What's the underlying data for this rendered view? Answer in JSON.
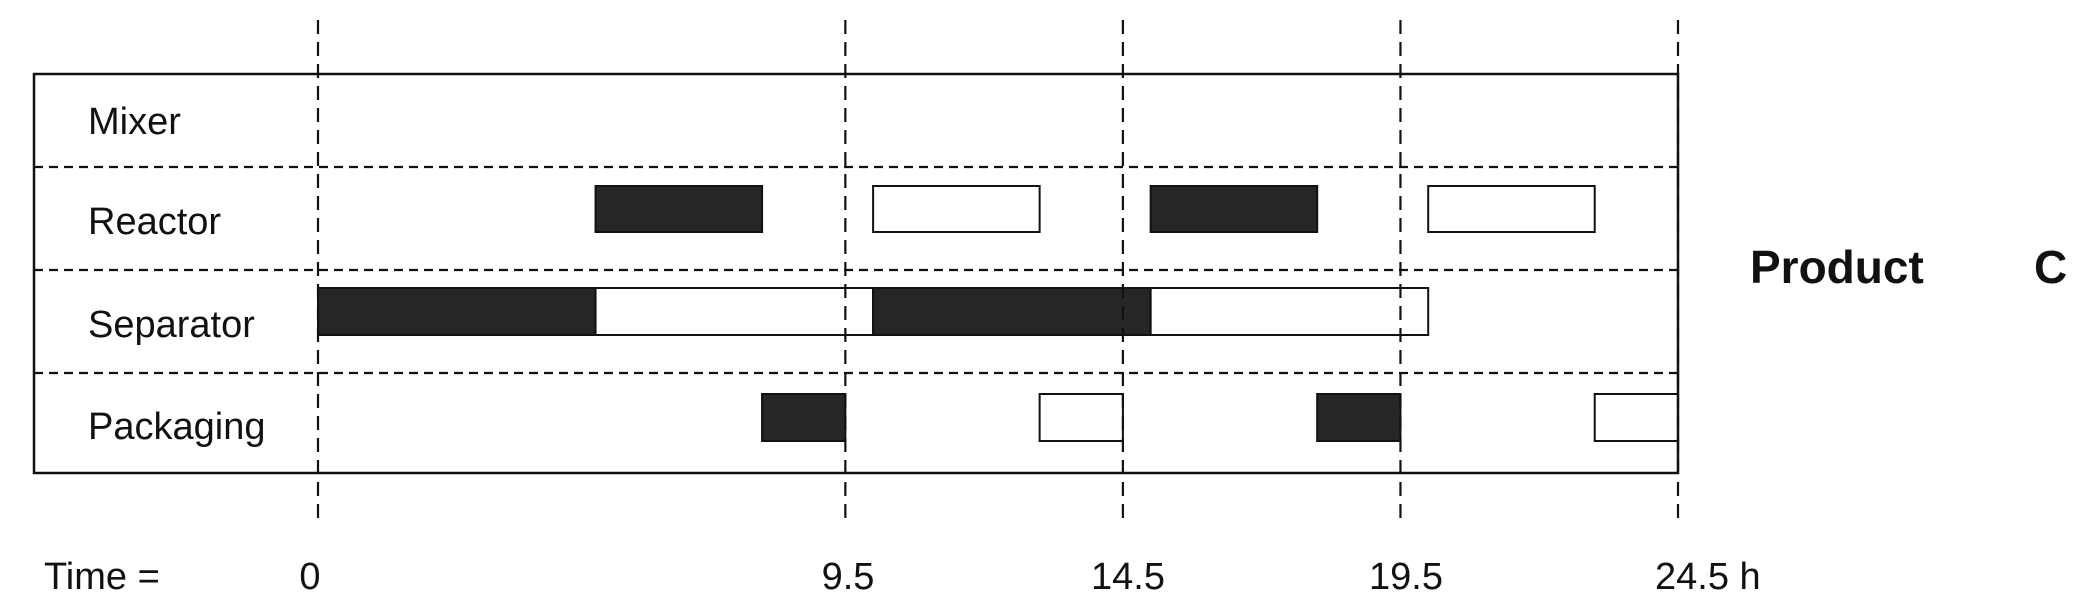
{
  "rows": [
    {
      "label": "Mixer"
    },
    {
      "label": "Reactor"
    },
    {
      "label": "Separator"
    },
    {
      "label": "Packaging"
    }
  ],
  "time_axis": {
    "prefix": "Time =",
    "ticks": [
      {
        "t": 0,
        "label": "0"
      },
      {
        "t": 9.5,
        "label": "9.5"
      },
      {
        "t": 14.5,
        "label": "14.5"
      },
      {
        "t": 19.5,
        "label": "19.5"
      },
      {
        "t": 24.5,
        "label": "24.5 h"
      }
    ],
    "range": [
      0,
      24.5
    ]
  },
  "product": {
    "word": "Product",
    "letter": "C"
  },
  "colors": {
    "filled": "#262626",
    "hollow": "#ffffff",
    "line": "#111111"
  },
  "chart_data": {
    "type": "gantt",
    "rows": [
      "Mixer",
      "Reactor",
      "Separator",
      "Packaging"
    ],
    "tasks": [
      {
        "row": "Reactor",
        "start": 5.0,
        "end": 8.0,
        "style": "filled"
      },
      {
        "row": "Reactor",
        "start": 10.0,
        "end": 13.0,
        "style": "hollow"
      },
      {
        "row": "Reactor",
        "start": 15.0,
        "end": 18.0,
        "style": "filled"
      },
      {
        "row": "Reactor",
        "start": 20.0,
        "end": 23.0,
        "style": "hollow"
      },
      {
        "row": "Separator",
        "start": 0.0,
        "end": 5.0,
        "style": "filled"
      },
      {
        "row": "Separator",
        "start": 5.0,
        "end": 10.0,
        "style": "hollow"
      },
      {
        "row": "Separator",
        "start": 10.0,
        "end": 15.0,
        "style": "filled"
      },
      {
        "row": "Separator",
        "start": 15.0,
        "end": 20.0,
        "style": "hollow"
      },
      {
        "row": "Packaging",
        "start": 8.0,
        "end": 9.5,
        "style": "filled"
      },
      {
        "row": "Packaging",
        "start": 13.0,
        "end": 14.5,
        "style": "hollow"
      },
      {
        "row": "Packaging",
        "start": 18.0,
        "end": 19.5,
        "style": "filled"
      },
      {
        "row": "Packaging",
        "start": 23.0,
        "end": 24.5,
        "style": "hollow"
      }
    ],
    "grid": true,
    "gridlines_at": [
      0,
      9.5,
      14.5,
      19.5,
      24.5
    ]
  }
}
